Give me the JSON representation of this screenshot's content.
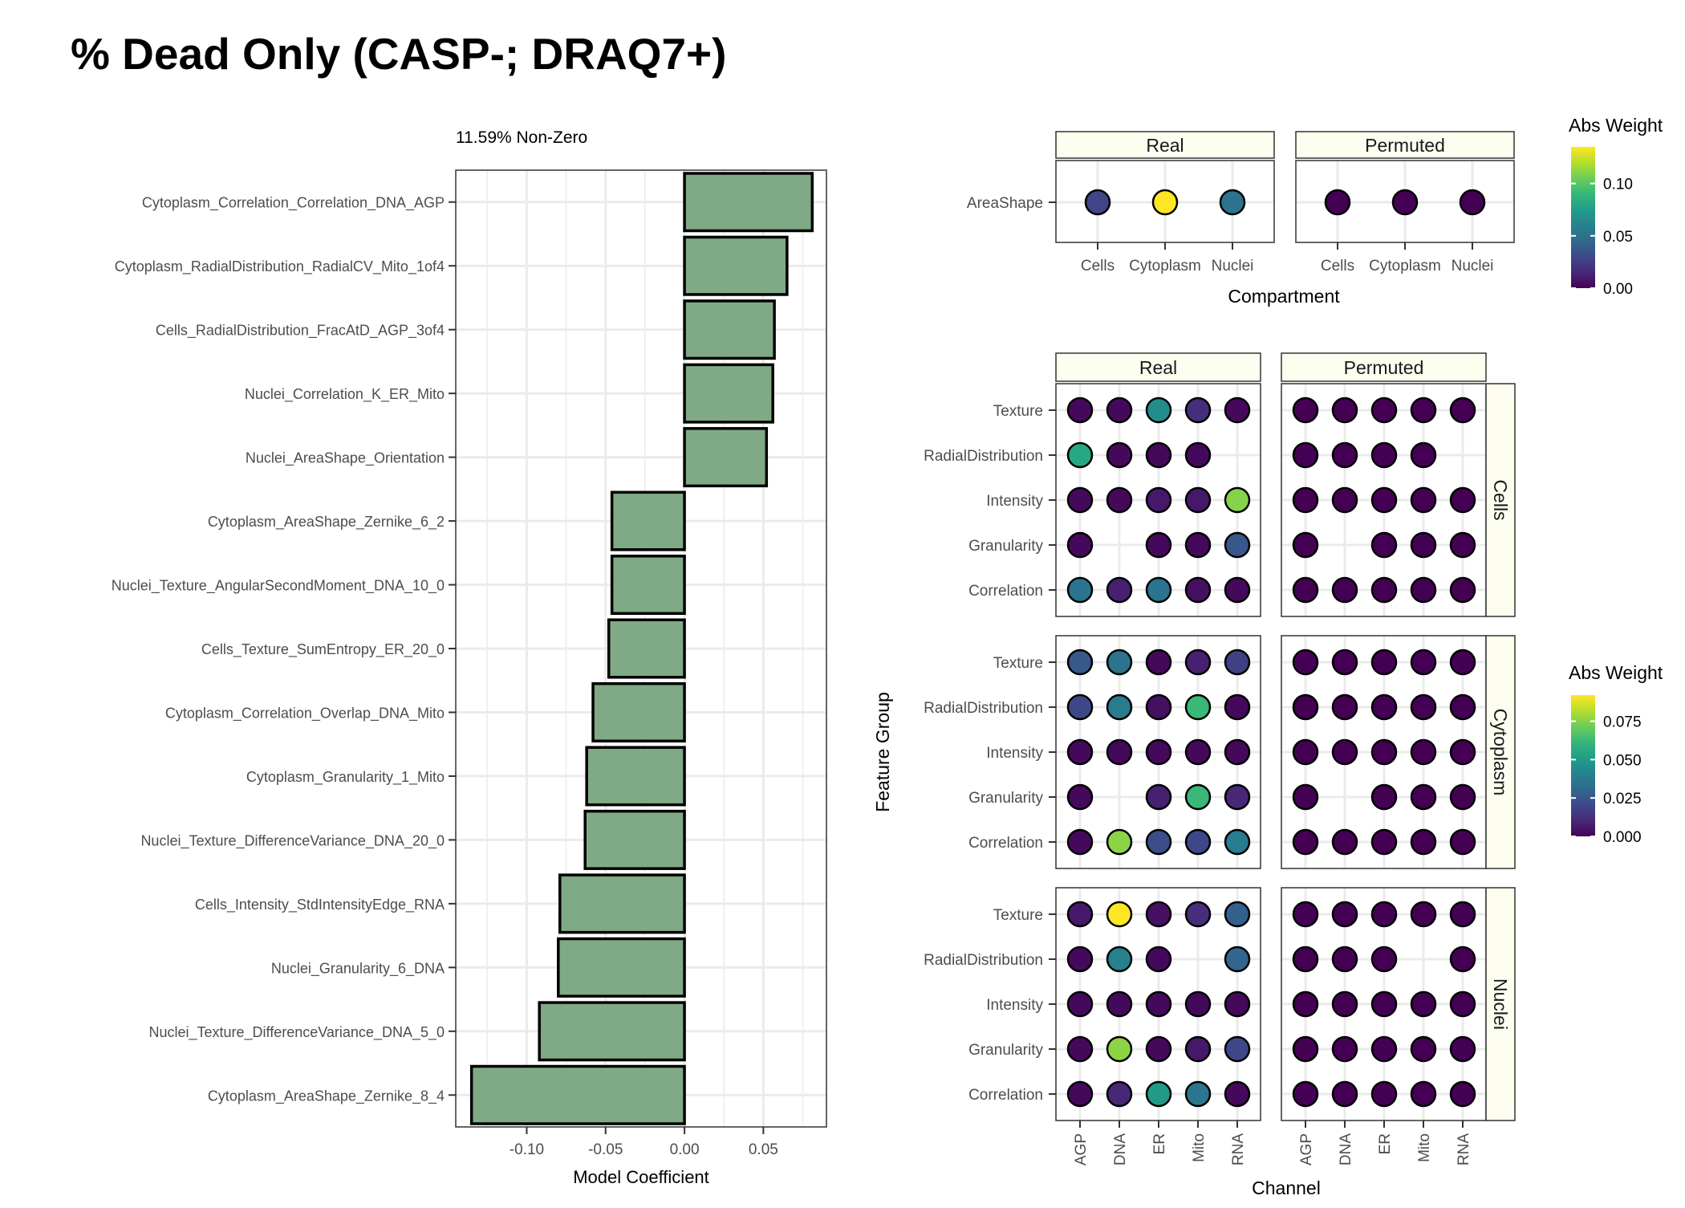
{
  "title": "% Dead Only (CASP-; DRAQ7+)",
  "colors": {
    "bar_fill": "#7faa85",
    "bar_stroke": "#000000",
    "strip_fill": "#fdfdf0",
    "grid": "#ebebeb",
    "viridis": [
      "#440154",
      "#482878",
      "#3e4989",
      "#31688e",
      "#26828e",
      "#1f9e89",
      "#35b779",
      "#6dcd59",
      "#b4de2c",
      "#fde725"
    ]
  },
  "chart_data": [
    {
      "type": "bar",
      "orientation": "horizontal",
      "subtitle": "11.59% Non-Zero",
      "xlabel": "Model Coefficient",
      "xlim": [
        -0.145,
        0.09
      ],
      "xticks": [
        -0.1,
        -0.05,
        0.0,
        0.05
      ],
      "xtick_labels": [
        "-0.10",
        "-0.05",
        "0.00",
        "0.05"
      ],
      "grid": true,
      "categories": [
        "Cytoplasm_Correlation_Correlation_DNA_AGP",
        "Cytoplasm_RadialDistribution_RadialCV_Mito_1of4",
        "Cells_RadialDistribution_FracAtD_AGP_3of4",
        "Nuclei_Correlation_K_ER_Mito",
        "Nuclei_AreaShape_Orientation",
        "Cytoplasm_AreaShape_Zernike_6_2",
        "Nuclei_Texture_AngularSecondMoment_DNA_10_0",
        "Cells_Texture_SumEntropy_ER_20_0",
        "Cytoplasm_Correlation_Overlap_DNA_Mito",
        "Cytoplasm_Granularity_1_Mito",
        "Nuclei_Texture_DifferenceVariance_DNA_20_0",
        "Cells_Intensity_StdIntensityEdge_RNA",
        "Nuclei_Granularity_6_DNA",
        "Nuclei_Texture_DifferenceVariance_DNA_5_0",
        "Cytoplasm_AreaShape_Zernike_8_4"
      ],
      "values": [
        0.081,
        0.065,
        0.057,
        0.056,
        0.052,
        -0.046,
        -0.046,
        -0.048,
        -0.058,
        -0.062,
        -0.063,
        -0.079,
        -0.08,
        -0.092,
        -0.135
      ]
    },
    {
      "type": "scatter",
      "subtype": "dot-matrix",
      "panels": [
        "Real",
        "Permuted"
      ],
      "y_categories": [
        "AreaShape"
      ],
      "x_categories": [
        "Cells",
        "Cytoplasm",
        "Nuclei"
      ],
      "xlabel": "Compartment",
      "legend": {
        "title": "Abs Weight",
        "range": [
          0,
          0.135
        ],
        "ticks": [
          0.0,
          0.05,
          0.1
        ],
        "tick_labels": [
          "0.00",
          "0.05",
          "0.10"
        ],
        "placement": "right"
      },
      "values": {
        "Real": [
          [
            0.028,
            0.135,
            0.052
          ]
        ],
        "Permuted": [
          [
            0,
            0,
            0
          ]
        ]
      }
    },
    {
      "type": "scatter",
      "subtype": "dot-matrix",
      "panels": [
        "Real",
        "Permuted"
      ],
      "row_facets": [
        "Cells",
        "Cytoplasm",
        "Nuclei"
      ],
      "y_categories": [
        "Texture",
        "RadialDistribution",
        "Intensity",
        "Granularity",
        "Correlation"
      ],
      "x_categories": [
        "AGP",
        "DNA",
        "ER",
        "Mito",
        "RNA"
      ],
      "xlabel": "Channel",
      "ylabel": "Feature Group",
      "legend": {
        "title": "Abs Weight",
        "range": [
          0,
          0.092
        ],
        "ticks": [
          0.0,
          0.025,
          0.05,
          0.075
        ],
        "tick_labels": [
          "0.000",
          "0.025",
          "0.050",
          "0.075"
        ],
        "placement": "right"
      },
      "values": {
        "Real": {
          "Cells": [
            [
              0.002,
              0.002,
              0.045,
              0.012,
              0.002
            ],
            [
              0.055,
              0.002,
              0.002,
              0.002,
              null
            ],
            [
              0.002,
              0.002,
              0.006,
              0.006,
              0.075
            ],
            [
              0.002,
              null,
              0.002,
              0.002,
              0.025
            ],
            [
              0.035,
              0.008,
              0.035,
              0.004,
              0.002
            ]
          ],
          "Cytoplasm": [
            [
              0.025,
              0.035,
              0.002,
              0.008,
              0.018
            ],
            [
              0.02,
              0.038,
              0.004,
              0.062,
              0.002
            ],
            [
              0.002,
              0.002,
              0.002,
              0.002,
              0.002
            ],
            [
              0.002,
              null,
              0.008,
              0.062,
              0.01
            ],
            [
              0.002,
              0.076,
              0.022,
              0.02,
              0.038
            ]
          ],
          "Nuclei": [
            [
              0.006,
              0.092,
              0.004,
              0.012,
              0.028
            ],
            [
              0.002,
              0.04,
              0.002,
              null,
              0.03
            ],
            [
              0.002,
              0.002,
              0.002,
              0.002,
              0.002
            ],
            [
              0.002,
              0.076,
              0.002,
              0.006,
              0.02
            ],
            [
              0.002,
              0.01,
              0.05,
              0.036,
              0.002
            ]
          ]
        },
        "Permuted": {
          "Cells": [
            [
              0,
              0,
              0,
              0,
              0
            ],
            [
              0,
              0,
              0,
              0,
              null
            ],
            [
              0,
              0,
              0,
              0,
              0
            ],
            [
              0,
              null,
              0,
              0,
              0
            ],
            [
              0,
              0,
              0,
              0,
              0
            ]
          ],
          "Cytoplasm": [
            [
              0,
              0,
              0,
              0,
              0
            ],
            [
              0,
              0,
              0,
              0,
              0
            ],
            [
              0,
              0,
              0,
              0,
              0
            ],
            [
              0,
              null,
              0,
              0,
              0
            ],
            [
              0,
              0,
              0,
              0,
              0
            ]
          ],
          "Nuclei": [
            [
              0,
              0,
              0,
              0,
              0
            ],
            [
              0,
              0,
              0,
              null,
              0
            ],
            [
              0,
              0,
              0,
              0,
              0
            ],
            [
              0,
              0,
              0,
              0,
              0
            ],
            [
              0,
              0,
              0,
              0,
              0
            ]
          ]
        }
      }
    }
  ]
}
